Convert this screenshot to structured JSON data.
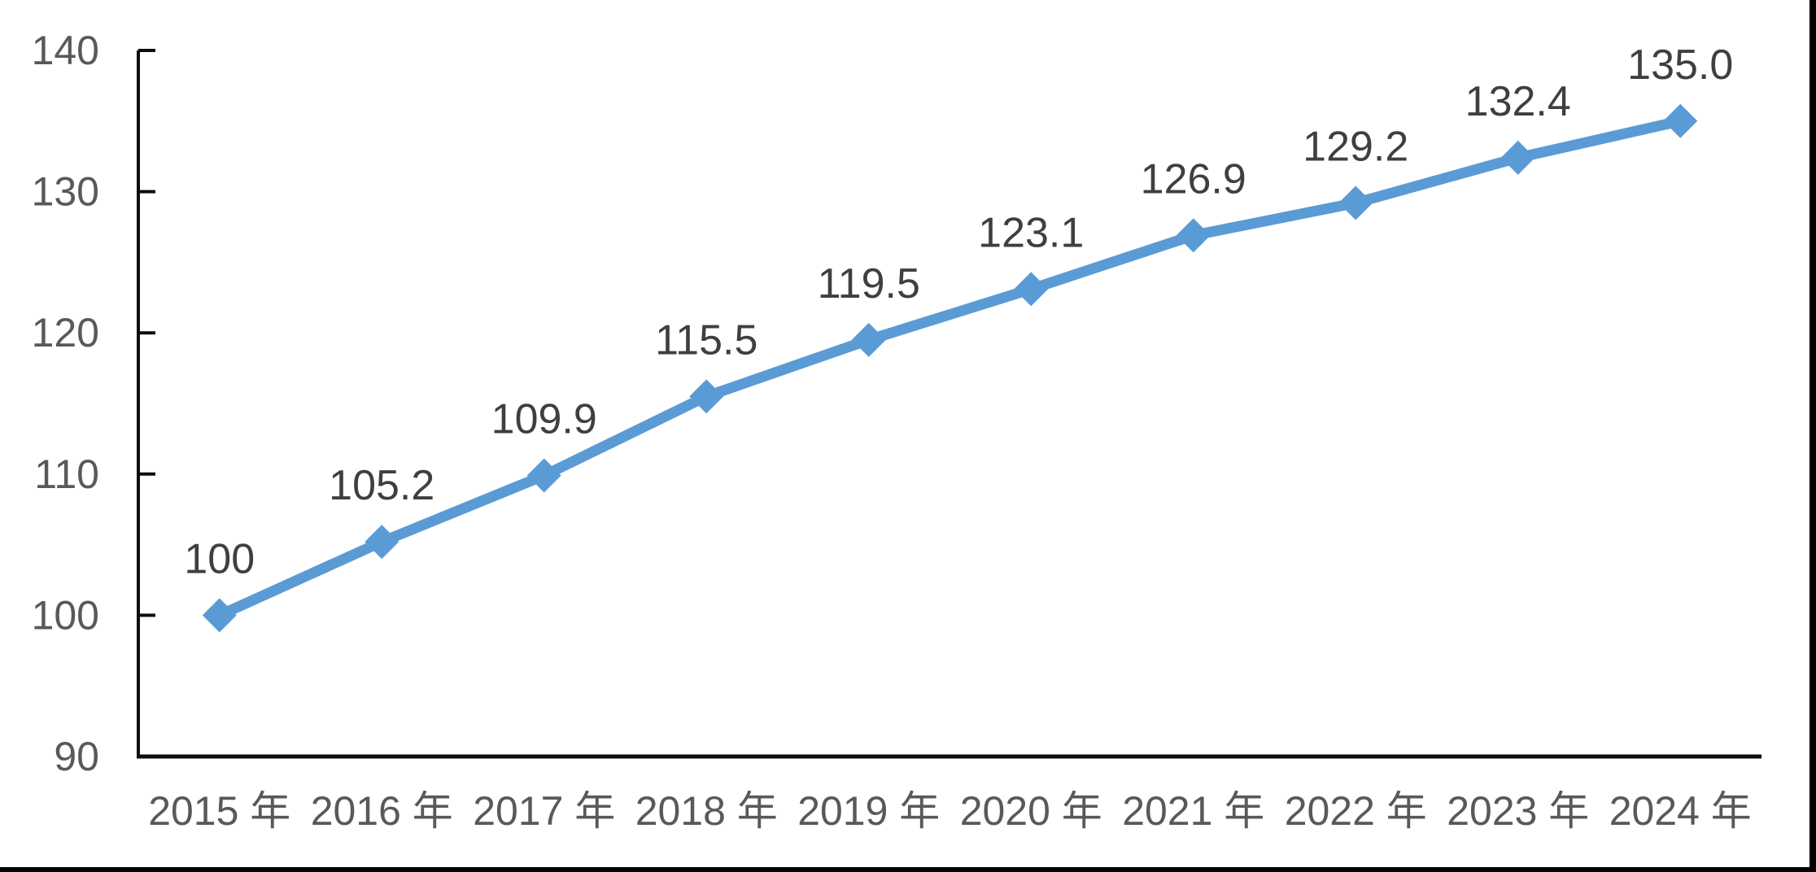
{
  "chart_data": {
    "type": "line",
    "categories": [
      "2015 年",
      "2016 年",
      "2017 年",
      "2018 年",
      "2019 年",
      "2020 年",
      "2021 年",
      "2022 年",
      "2023 年",
      "2024 年"
    ],
    "series": [
      {
        "name": "index-line",
        "values": [
          100,
          105.2,
          109.9,
          115.5,
          119.5,
          123.1,
          126.9,
          129.2,
          132.4,
          135.0
        ]
      }
    ],
    "data_labels": [
      "100",
      "105.2",
      "109.9",
      "115.5",
      "119.5",
      "123.1",
      "126.9",
      "129.2",
      "132.4",
      "135.0"
    ],
    "y_ticks": [
      140,
      130,
      120,
      110,
      100,
      90
    ],
    "ylim": [
      90,
      140
    ],
    "xlabel": "",
    "ylabel": "",
    "grid": false,
    "legend_position": "none",
    "marker": "diamond",
    "colors": {
      "line": "#5B9BD5",
      "marker": "#5B9BD5",
      "data_label": "#3f3f3f",
      "axis_text": "#595959",
      "axis_line": "#0d0d0d",
      "background": "#ffffff",
      "crop_border": "#000000"
    }
  }
}
